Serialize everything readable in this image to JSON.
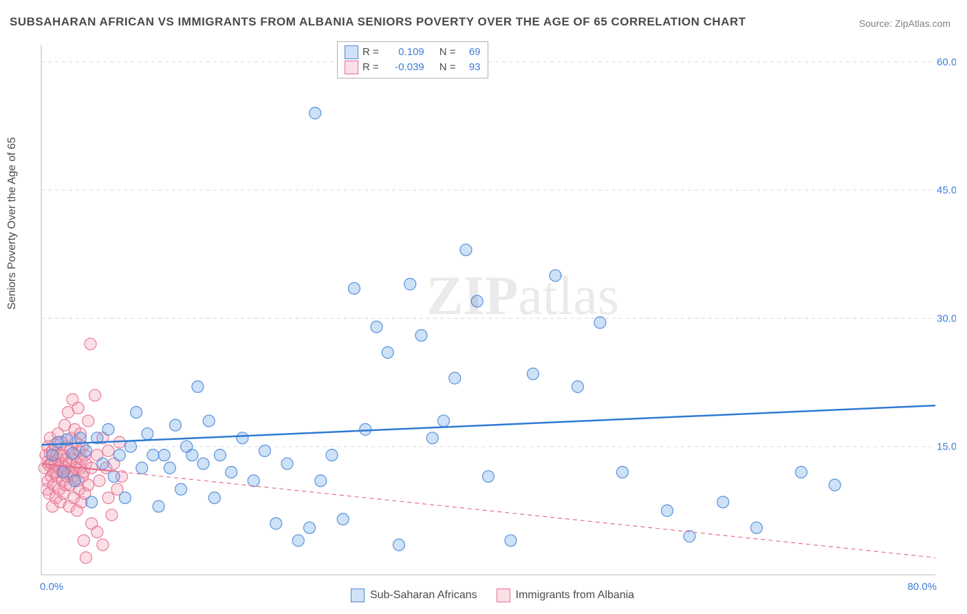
{
  "title": "SUBSAHARAN AFRICAN VS IMMIGRANTS FROM ALBANIA SENIORS POVERTY OVER THE AGE OF 65 CORRELATION CHART",
  "source": "Source: ZipAtlas.com",
  "ylabel": "Seniors Poverty Over the Age of 65",
  "watermark": "ZIPatlas",
  "chart": {
    "type": "scatter",
    "xlim": [
      0,
      80
    ],
    "ylim": [
      0,
      62
    ],
    "xtick_labels": [
      "0.0%",
      "80.0%"
    ],
    "ytick_positions": [
      15,
      30,
      45,
      60
    ],
    "ytick_labels": [
      "15.0%",
      "30.0%",
      "45.0%",
      "60.0%"
    ],
    "x_axis_color": "#d0d0d0",
    "y_axis_color": "#d0d0d0",
    "grid_color": "#d8d8d8",
    "tick_label_color": "#3b7dd8",
    "tick_label_fontsize": 15,
    "background_color": "#ffffff",
    "marker_radius": 8.5,
    "marker_fill_opacity": 0.35,
    "marker_stroke_opacity": 0.9,
    "marker_stroke_width": 1.2
  },
  "series": [
    {
      "name": "Sub-Saharan Africans",
      "color": "#6fa8e8",
      "stroke": "#4a86d6",
      "trend": {
        "x1": 0,
        "y1": 15.2,
        "x2": 80,
        "y2": 19.8,
        "width": 2.5,
        "dash": "",
        "color": "#2f7ad2"
      },
      "stats": {
        "R": "0.109",
        "N": "69"
      },
      "points": [
        [
          1.0,
          14.0
        ],
        [
          1.5,
          15.5
        ],
        [
          2.0,
          12.0
        ],
        [
          2.3,
          15.8
        ],
        [
          2.8,
          14.2
        ],
        [
          3.0,
          11.0
        ],
        [
          3.5,
          16.0
        ],
        [
          4.0,
          14.5
        ],
        [
          4.5,
          8.5
        ],
        [
          5.0,
          16.0
        ],
        [
          5.5,
          13.0
        ],
        [
          6.0,
          17.0
        ],
        [
          6.5,
          11.5
        ],
        [
          7.0,
          14.0
        ],
        [
          7.5,
          9.0
        ],
        [
          8.0,
          15.0
        ],
        [
          8.5,
          19.0
        ],
        [
          9.0,
          12.5
        ],
        [
          9.5,
          16.5
        ],
        [
          10.0,
          14.0
        ],
        [
          10.5,
          8.0
        ],
        [
          11.0,
          14.0
        ],
        [
          11.5,
          12.5
        ],
        [
          12.0,
          17.5
        ],
        [
          12.5,
          10.0
        ],
        [
          13.0,
          15.0
        ],
        [
          13.5,
          14.0
        ],
        [
          14.0,
          22.0
        ],
        [
          14.5,
          13.0
        ],
        [
          15.0,
          18.0
        ],
        [
          15.5,
          9.0
        ],
        [
          16.0,
          14.0
        ],
        [
          17.0,
          12.0
        ],
        [
          18.0,
          16.0
        ],
        [
          19.0,
          11.0
        ],
        [
          20.0,
          14.5
        ],
        [
          21.0,
          6.0
        ],
        [
          22.0,
          13.0
        ],
        [
          23.0,
          4.0
        ],
        [
          24.0,
          5.5
        ],
        [
          24.5,
          54.0
        ],
        [
          25.0,
          11.0
        ],
        [
          26.0,
          14.0
        ],
        [
          27.0,
          6.5
        ],
        [
          28.0,
          33.5
        ],
        [
          29.0,
          17.0
        ],
        [
          30.0,
          29.0
        ],
        [
          31.0,
          26.0
        ],
        [
          32.0,
          3.5
        ],
        [
          33.0,
          34.0
        ],
        [
          34.0,
          28.0
        ],
        [
          35.0,
          16.0
        ],
        [
          36.0,
          18.0
        ],
        [
          37.0,
          23.0
        ],
        [
          38.0,
          38.0
        ],
        [
          39.0,
          32.0
        ],
        [
          40.0,
          11.5
        ],
        [
          42.0,
          4.0
        ],
        [
          44.0,
          23.5
        ],
        [
          46.0,
          35.0
        ],
        [
          48.0,
          22.0
        ],
        [
          50.0,
          29.5
        ],
        [
          52.0,
          12.0
        ],
        [
          56.0,
          7.5
        ],
        [
          58.0,
          4.5
        ],
        [
          61.0,
          8.5
        ],
        [
          64.0,
          5.5
        ],
        [
          68.0,
          12.0
        ],
        [
          71.0,
          10.5
        ]
      ]
    },
    {
      "name": "Immigrants from Albania",
      "color": "#f2a3b6",
      "stroke": "#e66f8d",
      "trend": {
        "x1": 0,
        "y1": 13.0,
        "x2": 80,
        "y2": 2.0,
        "width": 1.2,
        "dash": "6,5",
        "color": "#e66f8d"
      },
      "trend_solid_until_x": 6.5,
      "stats": {
        "R": "-0.039",
        "N": "93"
      },
      "points": [
        [
          0.3,
          12.5
        ],
        [
          0.4,
          14.0
        ],
        [
          0.5,
          10.0
        ],
        [
          0.5,
          13.2
        ],
        [
          0.6,
          15.0
        ],
        [
          0.6,
          11.0
        ],
        [
          0.7,
          12.8
        ],
        [
          0.7,
          9.5
        ],
        [
          0.8,
          14.2
        ],
        [
          0.8,
          16.0
        ],
        [
          0.9,
          11.5
        ],
        [
          0.9,
          13.0
        ],
        [
          1.0,
          8.0
        ],
        [
          1.0,
          14.5
        ],
        [
          1.1,
          12.0
        ],
        [
          1.1,
          10.5
        ],
        [
          1.2,
          15.2
        ],
        [
          1.2,
          13.0
        ],
        [
          1.3,
          9.0
        ],
        [
          1.3,
          12.0
        ],
        [
          1.4,
          14.0
        ],
        [
          1.4,
          11.5
        ],
        [
          1.5,
          16.5
        ],
        [
          1.5,
          13.5
        ],
        [
          1.6,
          10.0
        ],
        [
          1.6,
          12.5
        ],
        [
          1.7,
          14.0
        ],
        [
          1.7,
          8.5
        ],
        [
          1.8,
          13.0
        ],
        [
          1.8,
          15.5
        ],
        [
          1.9,
          11.0
        ],
        [
          1.9,
          12.0
        ],
        [
          2.0,
          9.5
        ],
        [
          2.0,
          14.0
        ],
        [
          2.1,
          17.5
        ],
        [
          2.1,
          12.5
        ],
        [
          2.2,
          10.5
        ],
        [
          2.2,
          13.5
        ],
        [
          2.3,
          15.0
        ],
        [
          2.3,
          11.5
        ],
        [
          2.4,
          19.0
        ],
        [
          2.4,
          12.0
        ],
        [
          2.5,
          8.0
        ],
        [
          2.5,
          13.0
        ],
        [
          2.6,
          14.5
        ],
        [
          2.6,
          10.5
        ],
        [
          2.7,
          16.0
        ],
        [
          2.7,
          12.0
        ],
        [
          2.8,
          20.5
        ],
        [
          2.8,
          13.5
        ],
        [
          2.9,
          9.0
        ],
        [
          2.9,
          11.5
        ],
        [
          3.0,
          14.0
        ],
        [
          3.0,
          17.0
        ],
        [
          3.1,
          12.5
        ],
        [
          3.1,
          15.5
        ],
        [
          3.2,
          7.5
        ],
        [
          3.2,
          13.0
        ],
        [
          3.3,
          19.5
        ],
        [
          3.3,
          11.0
        ],
        [
          3.4,
          14.5
        ],
        [
          3.4,
          10.0
        ],
        [
          3.5,
          16.5
        ],
        [
          3.5,
          12.5
        ],
        [
          3.6,
          8.5
        ],
        [
          3.6,
          13.5
        ],
        [
          3.7,
          15.0
        ],
        [
          3.7,
          11.5
        ],
        [
          3.8,
          4.0
        ],
        [
          3.8,
          12.0
        ],
        [
          3.9,
          14.0
        ],
        [
          3.9,
          9.5
        ],
        [
          4.0,
          2.0
        ],
        [
          4.0,
          13.0
        ],
        [
          4.2,
          18.0
        ],
        [
          4.2,
          10.5
        ],
        [
          4.4,
          27.0
        ],
        [
          4.5,
          6.0
        ],
        [
          4.5,
          12.5
        ],
        [
          4.8,
          21.0
        ],
        [
          5.0,
          14.0
        ],
        [
          5.0,
          5.0
        ],
        [
          5.2,
          11.0
        ],
        [
          5.5,
          16.0
        ],
        [
          5.5,
          3.5
        ],
        [
          5.8,
          12.5
        ],
        [
          6.0,
          9.0
        ],
        [
          6.0,
          14.5
        ],
        [
          6.3,
          7.0
        ],
        [
          6.5,
          13.0
        ],
        [
          6.8,
          10.0
        ],
        [
          7.0,
          15.5
        ],
        [
          7.2,
          11.5
        ]
      ]
    }
  ],
  "info_box": {
    "R_label": "R =",
    "N_label": "N ="
  },
  "bottom_legend": [
    {
      "label": "Sub-Saharan Africans",
      "color": "#6fa8e8",
      "stroke": "#4a86d6"
    },
    {
      "label": "Immigrants from Albania",
      "color": "#f2a3b6",
      "stroke": "#e66f8d"
    }
  ]
}
